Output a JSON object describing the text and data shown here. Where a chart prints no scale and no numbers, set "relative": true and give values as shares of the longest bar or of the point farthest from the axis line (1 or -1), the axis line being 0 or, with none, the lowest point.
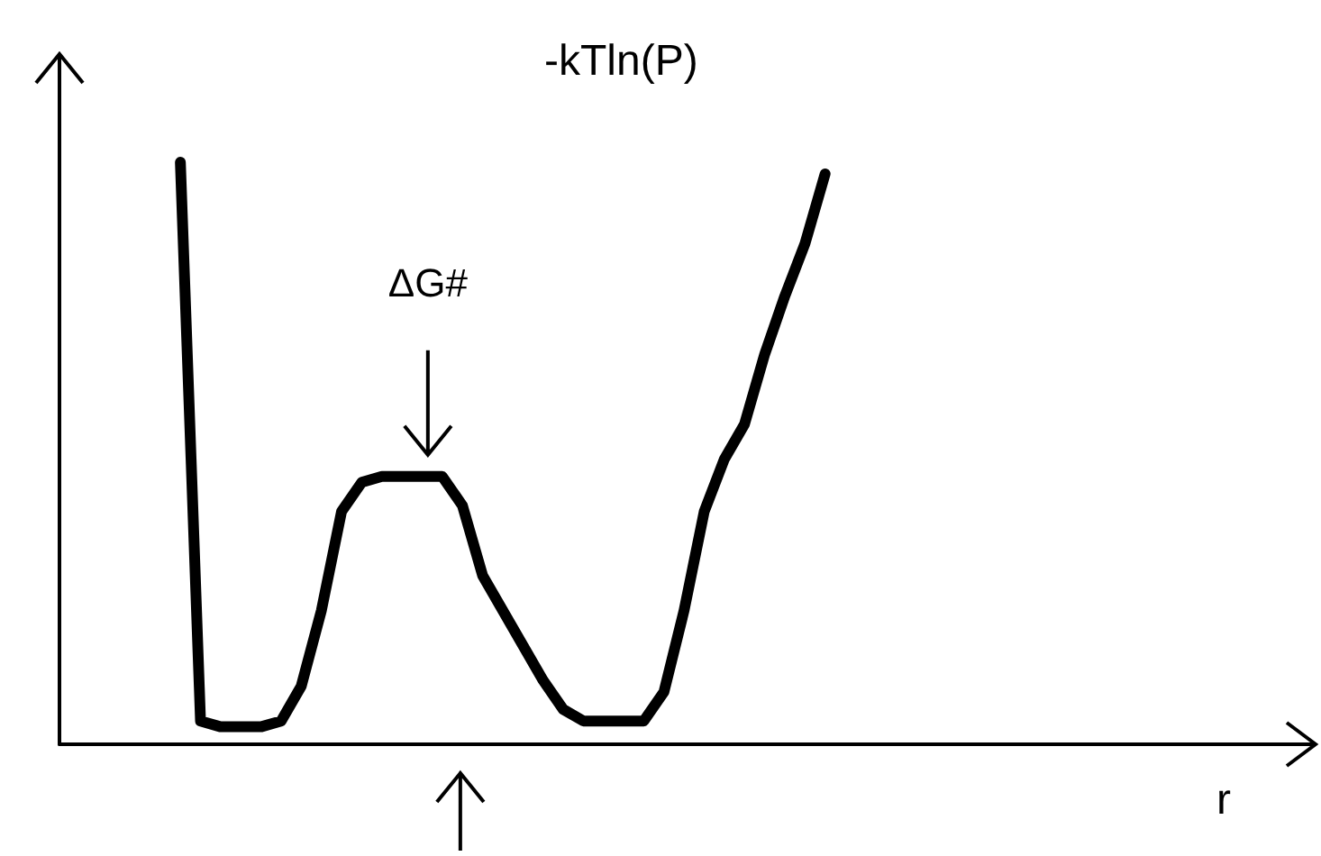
{
  "chart_data": {
    "type": "line",
    "relative": true,
    "ylabel": "-kTln(P)",
    "xlabel": "r",
    "annotations": [
      "ΔG#"
    ],
    "categories": [
      null,
      null,
      null,
      null,
      null,
      null,
      null,
      null,
      null,
      null,
      null,
      null,
      null,
      null,
      null,
      null,
      null,
      null,
      null,
      null,
      null,
      null,
      null,
      null,
      null,
      null,
      null,
      null,
      null,
      null,
      null,
      null,
      null,
      null,
      null,
      null,
      null,
      null,
      null,
      null,
      null,
      null,
      null,
      null,
      null,
      null,
      null,
      null,
      null,
      null,
      null,
      null,
      null,
      null,
      null,
      null,
      null,
      null,
      null,
      null,
      null,
      null
    ],
    "series": [
      {
        "color": "#000000",
        "values": [
          null,
          null,
          null,
          null,
          null,
          null,
          1.0,
          0.04,
          0.03,
          0.03,
          0.03,
          0.04,
          0.1,
          0.23,
          0.4,
          0.45,
          0.46,
          0.46,
          0.46,
          0.46,
          0.41,
          0.29,
          0.23,
          0.17,
          0.11,
          0.06,
          0.04,
          0.04,
          0.04,
          0.04,
          0.09,
          0.23,
          0.4,
          0.49,
          0.55,
          0.67,
          0.77,
          0.86,
          0.98,
          null,
          null,
          null,
          null,
          null,
          null,
          null,
          null,
          null,
          null,
          null,
          null,
          null,
          null,
          null,
          null,
          null,
          null,
          null,
          null,
          null,
          null,
          null
        ]
      }
    ],
    "grid": false,
    "marker": "none",
    "line_style": "solid"
  }
}
